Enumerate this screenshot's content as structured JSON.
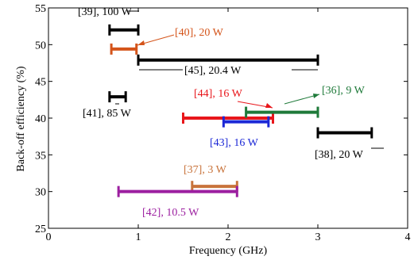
{
  "chart_data": {
    "type": "range-bar",
    "title": "",
    "xlabel": "Frequency (GHz)",
    "ylabel": "Back-off efficiency (%)",
    "xlim": [
      0,
      4
    ],
    "ylim": [
      25,
      55
    ],
    "xticks": [
      "0",
      "1",
      "2",
      "3",
      "4"
    ],
    "yticks": [
      "25",
      "30",
      "35",
      "40",
      "45",
      "50",
      "55"
    ],
    "grid": false,
    "legend": "none",
    "series": [
      {
        "label": "[39], 100 W",
        "x_start": 0.68,
        "x_end": 1.0,
        "y": 52.0,
        "color": "#000000"
      },
      {
        "label": "[40], 20 W",
        "x_start": 0.7,
        "x_end": 0.98,
        "y": 49.4,
        "color": "#d4541a"
      },
      {
        "label": "[45], 20.4 W",
        "x_start": 1.0,
        "x_end": 3.0,
        "y": 47.9,
        "color": "#000000"
      },
      {
        "label": "[41], 85 W",
        "x_start": 0.68,
        "x_end": 0.86,
        "y": 42.9,
        "color": "#000000"
      },
      {
        "label": "[44], 16 W",
        "x_start": 1.5,
        "x_end": 2.5,
        "y": 40.0,
        "color": "#e8161b"
      },
      {
        "label": "[36], 9 W",
        "x_start": 2.2,
        "x_end": 3.0,
        "y": 40.8,
        "color": "#1f7a3a"
      },
      {
        "label": "[43], 16 W",
        "x_start": 1.95,
        "x_end": 2.45,
        "y": 39.5,
        "color": "#1c28d6"
      },
      {
        "label": "[38], 20 W",
        "x_start": 3.0,
        "x_end": 3.6,
        "y": 38.0,
        "color": "#000000"
      },
      {
        "label": "[37], 3 W",
        "x_start": 1.6,
        "x_end": 2.1,
        "y": 30.7,
        "color": "#c8733b"
      },
      {
        "label": "[42], 10.5 W",
        "x_start": 0.78,
        "x_end": 2.1,
        "y": 30.0,
        "color": "#9c1fa0"
      }
    ]
  }
}
